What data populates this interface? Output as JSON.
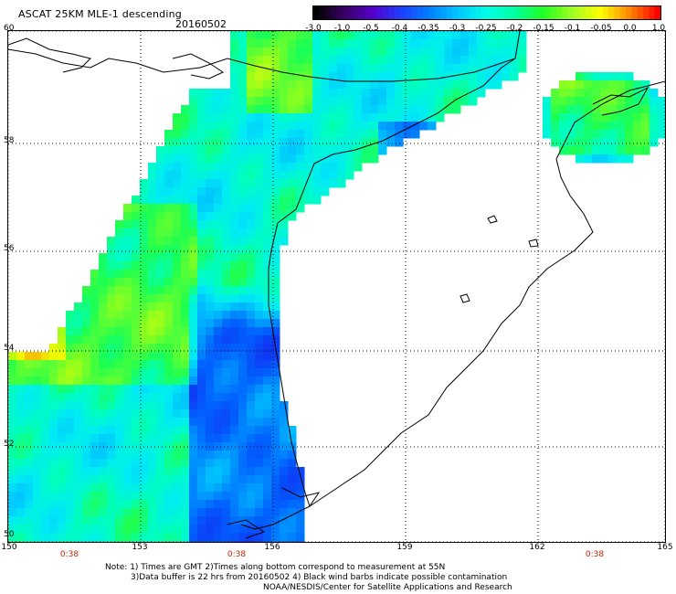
{
  "header": {
    "title": "ASCAT 25KM MLE-1 descending",
    "date": "20160502"
  },
  "colorbar": {
    "tick_labels": [
      "-3.0",
      "-1.0",
      "-0.5",
      "-0.4",
      "-0.35",
      "-0.3",
      "-0.25",
      "-0.2",
      "-0.15",
      "-0.1",
      "-0.05",
      "0.0",
      "1.0"
    ],
    "colors": [
      "#000000",
      "#3a0066",
      "#5500cc",
      "#1f3fff",
      "#0080ff",
      "#00c8ff",
      "#00ffe6",
      "#00ffa0",
      "#22ff22",
      "#a0ff22",
      "#ffff00",
      "#ff8800",
      "#ff0000"
    ]
  },
  "axes": {
    "lat_labels": [
      "60",
      "58",
      "56",
      "54",
      "52",
      "50"
    ],
    "lon_labels": [
      "150",
      "153",
      "156",
      "159",
      "162",
      "165"
    ],
    "time_labels": [
      "0:38",
      "0:38",
      "0:38"
    ]
  },
  "notes": {
    "line1": "Note: 1) Times are GMT 2)Times along bottom correspond to measurement at 55N",
    "line2": "3)Data buffer is 22 hrs from 20160502 4) Black wind barbs indicate possible contamination",
    "line3": "NOAA/NESDIS/Center for Satellite Applications and Research"
  },
  "style": {
    "grid_color": "#000000",
    "coast_color": "#000000"
  }
}
